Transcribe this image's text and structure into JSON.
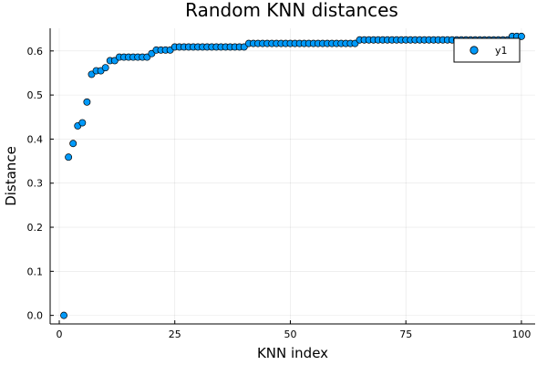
{
  "chart_data": {
    "type": "scatter",
    "title": "Random KNN distances",
    "xlabel": "KNN index",
    "ylabel": "Distance",
    "xlim": [
      -1.97,
      102.97
    ],
    "ylim": [
      -0.0194,
      0.6514
    ],
    "xticks": [
      0,
      25,
      50,
      75,
      100
    ],
    "xtick_labels": [
      "0",
      "25",
      "50",
      "75",
      "100"
    ],
    "yticks": [
      0.0,
      0.1,
      0.2,
      0.3,
      0.4,
      0.5,
      0.6
    ],
    "ytick_labels": [
      "0.0",
      "0.1",
      "0.2",
      "0.3",
      "0.4",
      "0.5",
      "0.6"
    ],
    "grid": true,
    "legend_position": "top-right",
    "marker_color": "#009AFA",
    "series": [
      {
        "name": "y1",
        "x": [
          1,
          2,
          3,
          4,
          5,
          6,
          7,
          8,
          9,
          10,
          11,
          12,
          13,
          14,
          15,
          16,
          17,
          18,
          19,
          20,
          21,
          22,
          23,
          24,
          25,
          26,
          27,
          28,
          29,
          30,
          31,
          32,
          33,
          34,
          35,
          36,
          37,
          38,
          39,
          40,
          41,
          42,
          43,
          44,
          45,
          46,
          47,
          48,
          49,
          50,
          51,
          52,
          53,
          54,
          55,
          56,
          57,
          58,
          59,
          60,
          61,
          62,
          63,
          64,
          65,
          66,
          67,
          68,
          69,
          70,
          71,
          72,
          73,
          74,
          75,
          76,
          77,
          78,
          79,
          80,
          81,
          82,
          83,
          84,
          85,
          86,
          87,
          88,
          89,
          90,
          91,
          92,
          93,
          94,
          95,
          96,
          97,
          98,
          99,
          100
        ],
        "y": [
          0.0,
          0.359,
          0.39,
          0.43,
          0.437,
          0.484,
          0.547,
          0.555,
          0.555,
          0.562,
          0.578,
          0.578,
          0.586,
          0.586,
          0.586,
          0.586,
          0.586,
          0.586,
          0.586,
          0.594,
          0.602,
          0.602,
          0.602,
          0.602,
          0.609,
          0.609,
          0.609,
          0.609,
          0.609,
          0.609,
          0.609,
          0.609,
          0.609,
          0.609,
          0.609,
          0.609,
          0.609,
          0.609,
          0.609,
          0.609,
          0.617,
          0.617,
          0.617,
          0.617,
          0.617,
          0.617,
          0.617,
          0.617,
          0.617,
          0.617,
          0.617,
          0.617,
          0.617,
          0.617,
          0.617,
          0.617,
          0.617,
          0.617,
          0.617,
          0.617,
          0.617,
          0.617,
          0.617,
          0.617,
          0.625,
          0.625,
          0.625,
          0.625,
          0.625,
          0.625,
          0.625,
          0.625,
          0.625,
          0.625,
          0.625,
          0.625,
          0.625,
          0.625,
          0.625,
          0.625,
          0.625,
          0.625,
          0.625,
          0.625,
          0.625,
          0.625,
          0.625,
          0.625,
          0.625,
          0.625,
          0.625,
          0.625,
          0.625,
          0.625,
          0.625,
          0.625,
          0.625,
          0.633,
          0.633,
          0.633
        ]
      }
    ]
  }
}
